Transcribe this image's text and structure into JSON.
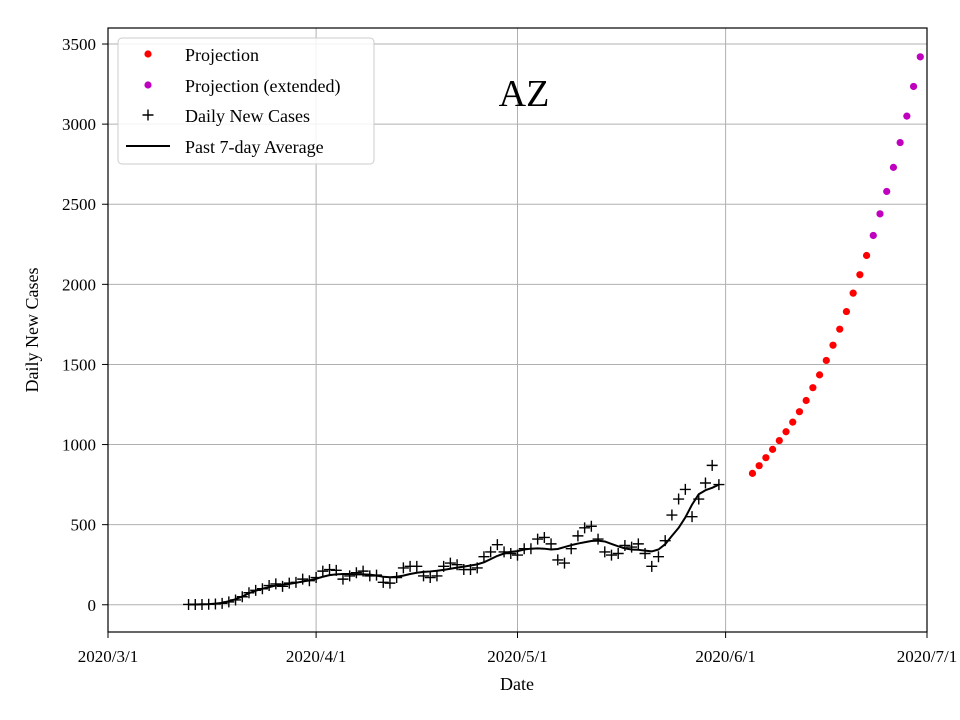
{
  "chart_data": {
    "type": "line",
    "title": "AZ",
    "xlabel": "Date",
    "ylabel": "Daily New Cases",
    "x_day_range": [
      0,
      122
    ],
    "ylim": [
      -170,
      3600
    ],
    "grid": true,
    "legend_position": "top-left",
    "xticks": [
      {
        "day": 0,
        "label": "2020/3/1"
      },
      {
        "day": 31,
        "label": "2020/4/1"
      },
      {
        "day": 61,
        "label": "2020/5/1"
      },
      {
        "day": 92,
        "label": "2020/6/1"
      },
      {
        "day": 122,
        "label": "2020/7/1"
      }
    ],
    "yticks": [
      0,
      500,
      1000,
      1500,
      2000,
      2500,
      3000,
      3500
    ],
    "series": [
      {
        "name": "Daily New Cases",
        "marker": "+",
        "color": "#000000",
        "start_day": 12,
        "values": [
          2,
          2,
          2,
          3,
          5,
          9,
          18,
          30,
          50,
          75,
          90,
          100,
          120,
          130,
          115,
          135,
          140,
          160,
          150,
          170,
          210,
          220,
          215,
          160,
          180,
          200,
          210,
          180,
          185,
          140,
          135,
          170,
          230,
          240,
          240,
          180,
          170,
          180,
          240,
          260,
          250,
          220,
          220,
          230,
          300,
          330,
          375,
          330,
          320,
          310,
          350,
          350,
          410,
          420,
          380,
          280,
          260,
          350,
          430,
          480,
          490,
          410,
          330,
          310,
          320,
          370,
          360,
          380,
          320,
          240,
          300,
          400,
          560,
          660,
          720,
          550,
          660,
          760,
          870,
          750
        ]
      },
      {
        "name": "Past 7-day Average",
        "style": "line",
        "color": "#000000",
        "start_day": 12,
        "values": [
          2,
          2,
          3,
          4,
          7,
          12,
          22,
          35,
          52,
          72,
          88,
          100,
          110,
          120,
          125,
          130,
          137,
          145,
          152,
          162,
          175,
          185,
          190,
          192,
          192,
          190,
          190,
          188,
          182,
          175,
          172,
          175,
          182,
          192,
          200,
          205,
          208,
          212,
          218,
          225,
          232,
          238,
          245,
          252,
          265,
          285,
          305,
          320,
          330,
          335,
          345,
          350,
          352,
          350,
          345,
          348,
          360,
          372,
          382,
          390,
          398,
          400,
          395,
          380,
          365,
          352,
          345,
          343,
          338,
          333,
          345,
          378,
          430,
          480,
          545,
          625,
          690,
          715,
          730,
          750
        ]
      },
      {
        "name": "Projection",
        "marker": "dot",
        "color": "#ff0000",
        "start_day": 96,
        "values": [
          820,
          868,
          918,
          970,
          1025,
          1080,
          1140,
          1205,
          1275,
          1355,
          1435,
          1525,
          1620,
          1720,
          1830,
          1945,
          2060,
          2180
        ]
      },
      {
        "name": "Projection (extended)",
        "marker": "dot",
        "color": "#bf00bf",
        "start_day": 114,
        "values": [
          2305,
          2440,
          2580,
          2730,
          2885,
          3050,
          3235,
          3420
        ]
      }
    ]
  },
  "legend": {
    "items": [
      {
        "label": "Projection",
        "kind": "dot",
        "color": "#ff0000"
      },
      {
        "label": "Projection (extended)",
        "kind": "dot",
        "color": "#bf00bf"
      },
      {
        "label": "Daily New Cases",
        "kind": "plus",
        "color": "#000000"
      },
      {
        "label": "Past 7-day Average",
        "kind": "line",
        "color": "#000000"
      }
    ]
  }
}
